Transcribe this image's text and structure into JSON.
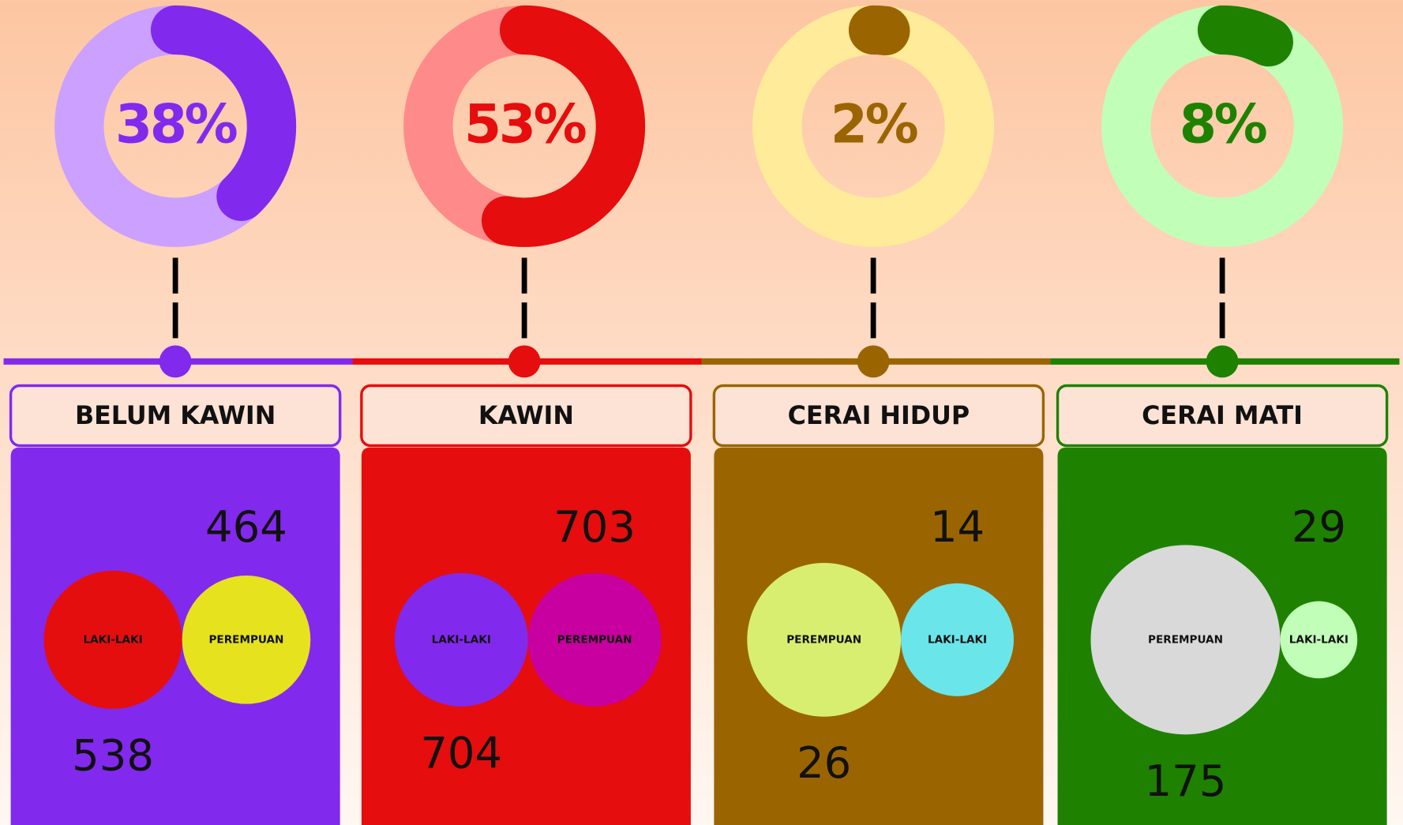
{
  "panels": [
    {
      "title": "BELUM KAWIN",
      "value": 38,
      "value_label": "38%",
      "color": "#8229ee",
      "light": "#cca0ff",
      "circles": [
        {
          "label": "LAKI-LAKI",
          "value": 538,
          "color": "#e50e0e"
        },
        {
          "label": "PEREMPUAN",
          "value": 464,
          "color": "#e6e21e"
        }
      ]
    },
    {
      "title": "KAWIN",
      "value": 53,
      "value_label": "53%",
      "color": "#e50d0d",
      "light": "#ff8a8a",
      "circles": [
        {
          "label": "LAKI-LAKI",
          "value": 704,
          "color": "#8229ee"
        },
        {
          "label": "PEREMPUAN",
          "value": 703,
          "color": "#c800a0"
        }
      ]
    },
    {
      "title": "CERAI HIDUP",
      "value": 2,
      "value_label": "2%",
      "color": "#9a6500",
      "light": "#ffeb99",
      "circles": [
        {
          "label": "PEREMPUAN",
          "value": 26,
          "color": "#d8ee70"
        },
        {
          "label": "LAKI-LAKI",
          "value": 14,
          "color": "#6ae5ea"
        }
      ]
    },
    {
      "title": "CERAI MATI",
      "value": 8,
      "value_label": "8%",
      "color": "#1e8200",
      "light": "#c1ffb8",
      "circles": [
        {
          "label": "PEREMPUAN",
          "value": 175,
          "color": "#d9d9d9"
        },
        {
          "label": "LAKI-LAKI",
          "value": 29,
          "color": "#c1ffb8"
        }
      ]
    }
  ]
}
